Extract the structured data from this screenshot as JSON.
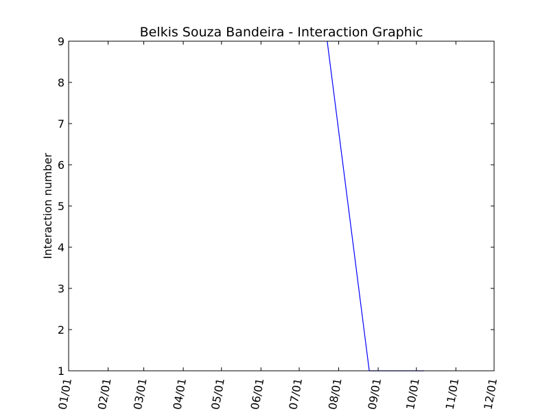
{
  "chart_data": {
    "type": "line",
    "title": "Belkis Souza Bandeira - Interaction Graphic",
    "xlabel": "",
    "ylabel": "Interaction number",
    "x_tick_labels": [
      "01/01",
      "02/01",
      "03/01",
      "04/01",
      "05/01",
      "06/01",
      "07/01",
      "08/01",
      "09/01",
      "10/01",
      "11/01",
      "12/01"
    ],
    "ylim": [
      1,
      9
    ],
    "y_ticks": [
      1,
      2,
      3,
      4,
      5,
      6,
      7,
      8,
      9
    ],
    "grid": false,
    "series": [
      {
        "color": "#0000ff",
        "points": [
          {
            "x": "07/23",
            "y": 9
          },
          {
            "x": "08/25",
            "y": 1
          },
          {
            "x": "10/07",
            "y": 1
          }
        ]
      }
    ]
  }
}
